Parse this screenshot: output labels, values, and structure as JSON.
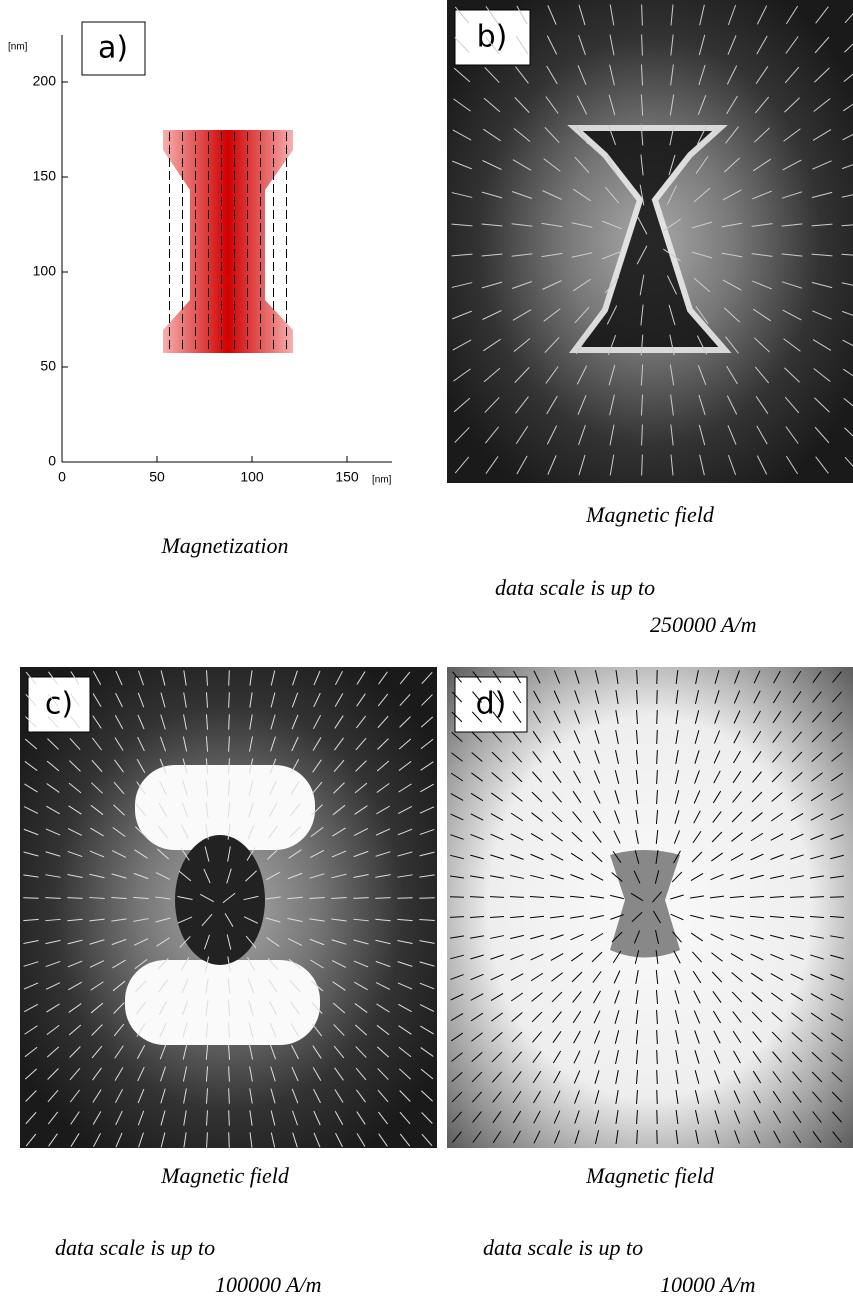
{
  "panels": [
    {
      "label": "a)",
      "caption": "Magnetization",
      "x_unit": "[nm]",
      "y_unit": "[nm]",
      "xticks": [
        0,
        50,
        100,
        150
      ],
      "yticks": [
        0,
        50,
        100,
        150,
        200
      ]
    },
    {
      "label": "b)",
      "caption": "Magnetic field",
      "scale_text": "data scale is up to",
      "scale_value": "250000 A/m"
    },
    {
      "label": "c)",
      "caption": "Magnetic field",
      "scale_text": "data scale is up to",
      "scale_value": "100000 A/m"
    },
    {
      "label": "d)",
      "caption": "Magnetic field",
      "scale_text": "data scale is up to",
      "scale_value": "10000 A/m"
    }
  ]
}
